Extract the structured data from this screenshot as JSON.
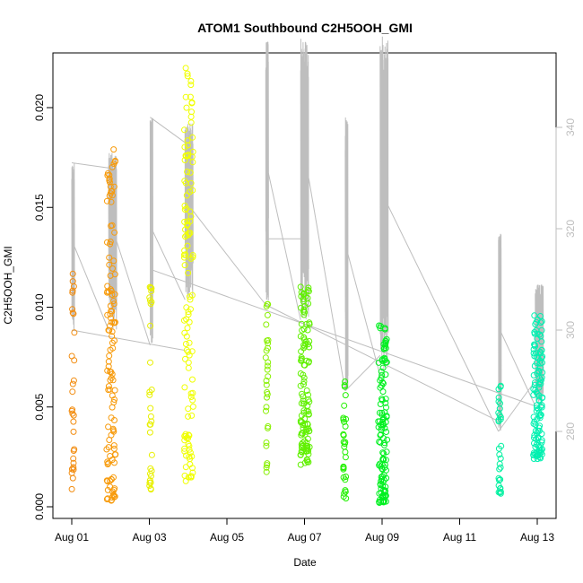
{
  "chart_data": {
    "type": "scatter",
    "title": "ATOM1 Southbound C2H5OOH_GMI",
    "xlabel": "Date",
    "ylabel": "C2H5OOH_GMI",
    "x_ticks": [
      "Aug 01",
      "Aug 03",
      "Aug 05",
      "Aug 07",
      "Aug 09",
      "Aug 11",
      "Aug 13"
    ],
    "x_range": [
      "2016-08-01",
      "2016-08-13"
    ],
    "y_ticks": [
      "0.000",
      "0.005",
      "0.010",
      "0.015",
      "0.020"
    ],
    "ylim": [
      0,
      0.022
    ],
    "y2_ticks": [
      "280",
      "300",
      "320",
      "340"
    ],
    "y2lim": [
      260,
      350
    ],
    "colors": {
      "points": [
        "#ff8c00",
        "#ffa500",
        "#ffff00",
        "#c8ff00",
        "#7cfc00",
        "#00ff00",
        "#00ff7f",
        "#00ffcc",
        "#00e5a0"
      ],
      "line": "#bebebe"
    },
    "flights": [
      {
        "day": 0.0,
        "yMin": 0.0005,
        "yMax": 0.012,
        "color": "#f28c0f"
      },
      {
        "day": 0.9,
        "yMin": 0.0003,
        "yMax": 0.018,
        "color": "#f79a0a"
      },
      {
        "day": 2.0,
        "yMin": 0.0008,
        "yMax": 0.0115,
        "color": "#e8f000"
      },
      {
        "day": 2.9,
        "yMin": 0.0012,
        "yMax": 0.022,
        "color": "#f0ff00"
      },
      {
        "day": 5.0,
        "yMin": 0.0017,
        "yMax": 0.0102,
        "color": "#88f000"
      },
      {
        "day": 5.9,
        "yMin": 0.0021,
        "yMax": 0.0112,
        "color": "#60f000"
      },
      {
        "day": 7.0,
        "yMin": 0.0003,
        "yMax": 0.0065,
        "color": "#22f000"
      },
      {
        "day": 7.9,
        "yMin": 0.0002,
        "yMax": 0.0092,
        "color": "#00f020"
      },
      {
        "day": 11.0,
        "yMin": 0.0004,
        "yMax": 0.0062,
        "color": "#00f0a0"
      },
      {
        "day": 11.9,
        "yMin": 0.0024,
        "yMax": 0.0097,
        "color": "#00f0b0"
      }
    ],
    "altitude_segments": [
      {
        "day": 0.0,
        "low": 300,
        "high": 333
      },
      {
        "day": 0.95,
        "low": 300,
        "high": 335
      },
      {
        "day": 2.02,
        "low": 297,
        "high": 342
      },
      {
        "day": 2.92,
        "low": 306,
        "high": 341
      },
      {
        "day": 5.0,
        "low": 305,
        "high": 357
      },
      {
        "day": 5.9,
        "low": 302,
        "high": 358
      },
      {
        "day": 7.05,
        "low": 288,
        "high": 342
      },
      {
        "day": 7.95,
        "low": 291,
        "high": 358
      },
      {
        "day": 11.0,
        "low": 280,
        "high": 319
      },
      {
        "day": 11.95,
        "low": 285,
        "high": 309
      }
    ]
  }
}
